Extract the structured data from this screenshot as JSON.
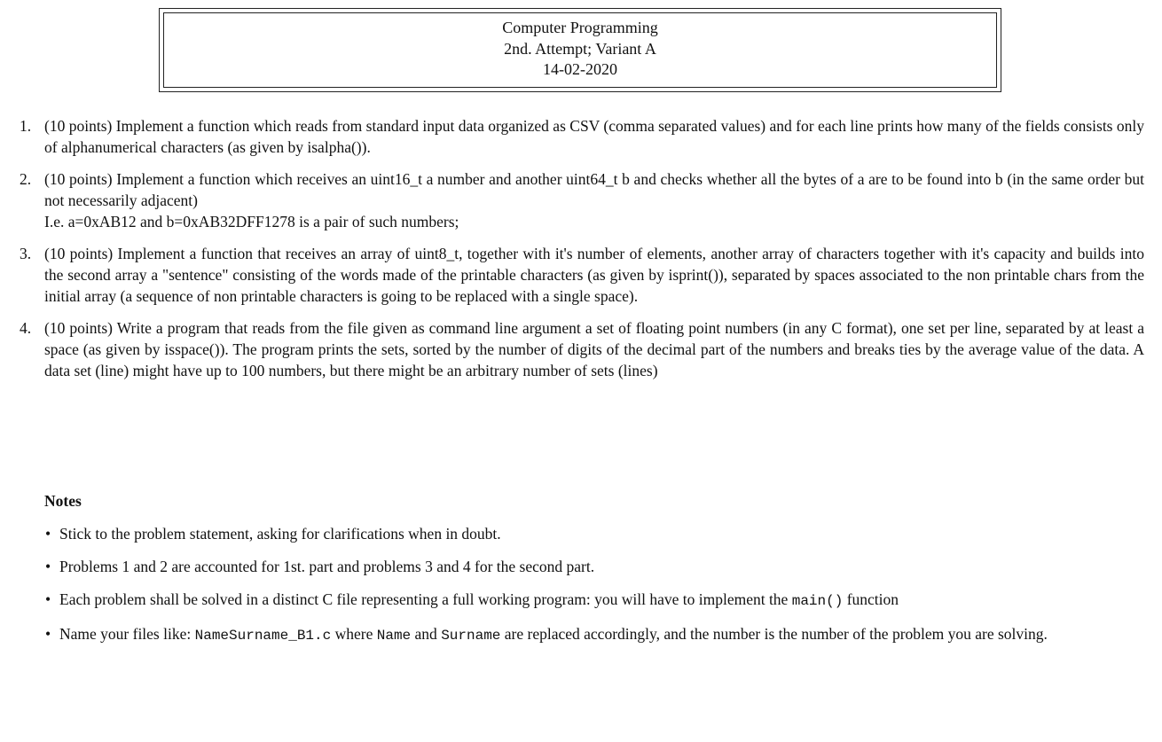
{
  "header": {
    "course": "Computer Programming",
    "attempt": "2nd. Attempt; Variant A",
    "date": "14-02-2020"
  },
  "problems": [
    {
      "number": "1.",
      "text": "(10 points) Implement a function which reads from standard input data organized as CSV (comma separated values) and for each line prints how many of the fields consists only of alphanumerical characters (as given by isalpha())."
    },
    {
      "number": "2.",
      "text": "(10 points) Implement a function which receives an uint16_t a number and another uint64_t b and checks whether all the bytes of a are to be found into b (in the same order but not necessarily adjacent)",
      "example": "I.e. a=0xAB12 and b=0xAB32DFF1278 is a pair of such numbers;"
    },
    {
      "number": "3.",
      "text": "(10 points) Implement a function that receives an array of uint8_t, together with it's number of elements, another array of characters together with it's capacity and builds into the second array a \"sentence\" consisting of the words made of the printable characters (as given by isprint()), separated by spaces associated to the non printable chars from the initial array (a sequence of non printable characters is going to be replaced with a single space)."
    },
    {
      "number": "4.",
      "text": "(10 points) Write a program that reads from the file given as command line argument a set of floating point numbers (in any C format), one set per line, separated by at least a space (as given by isspace()). The program prints the sets, sorted by the number of digits of the decimal part of the numbers and breaks ties by the average value of the data. A data set (line) might have up to 100 numbers, but there might be an arbitrary number of sets (lines)"
    }
  ],
  "notes": {
    "heading": "Notes",
    "bullet": "•",
    "items": [
      {
        "text": "Stick to the problem statement, asking for clarifications when in doubt."
      },
      {
        "text": "Problems 1 and 2 are accounted for 1st. part and problems 3 and 4 for the second part."
      },
      {
        "pre": "Each problem shall be solved in a distinct C file representing a full working program: you will have to implement the ",
        "code": "main()",
        "post": " function"
      },
      {
        "pre": "Name your files like: ",
        "code1": "NameSurname_B1.c",
        "mid1": " where ",
        "code2": "Name",
        "mid2": " and ",
        "code3": "Surname",
        "post": " are replaced accordingly, and the number is the number of the problem you are solving."
      }
    ]
  }
}
